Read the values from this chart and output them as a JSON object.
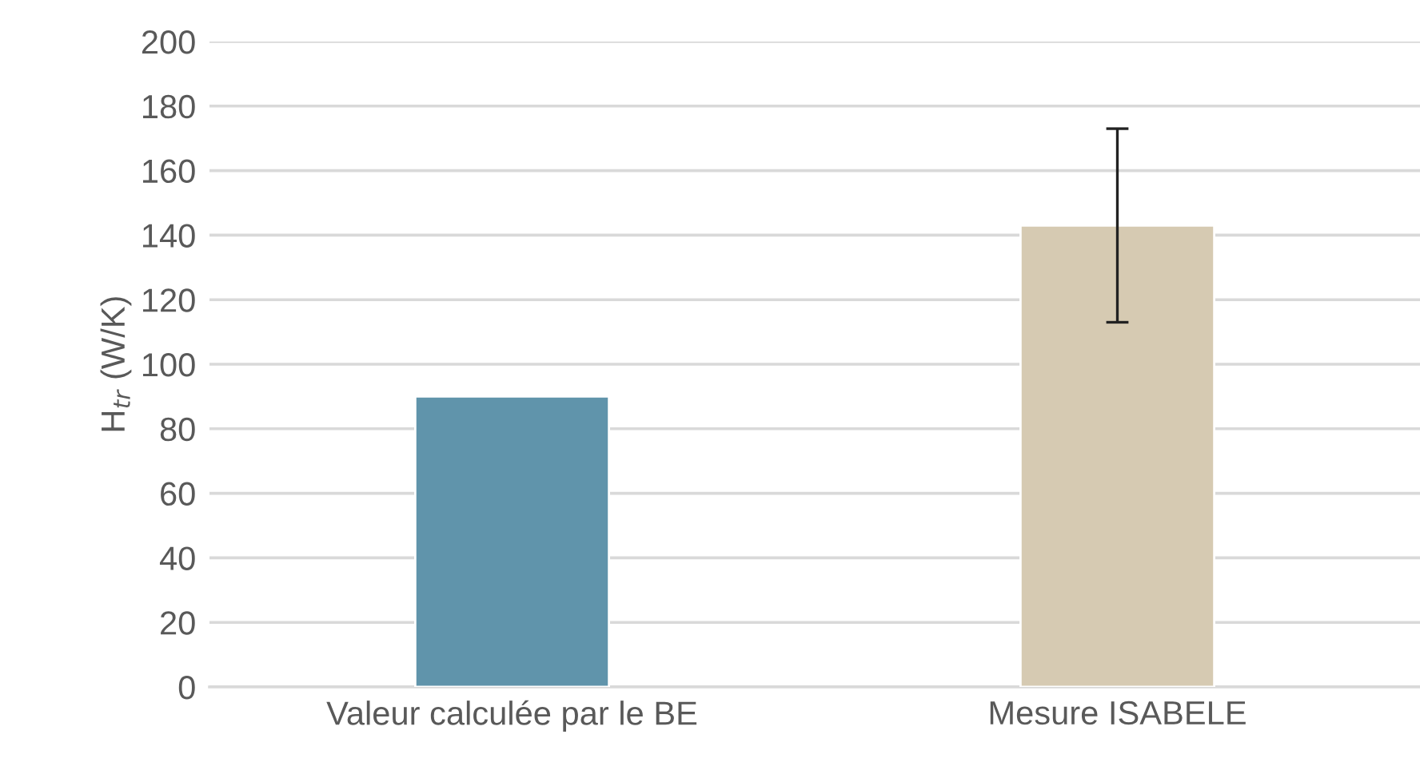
{
  "chart_data": {
    "type": "bar",
    "ylabel": "H$_{tr}$ (W/K)",
    "categories": [
      "Valeur calculée par le BE",
      "Mesure ISABELE"
    ],
    "values": [
      90,
      143
    ],
    "colors": [
      "#6094ab",
      "#d6cab2"
    ],
    "errors": [
      null,
      [
        113,
        173
      ]
    ],
    "ylim": [
      0,
      200
    ],
    "yticks": [
      0,
      20,
      40,
      60,
      80,
      100,
      120,
      140,
      160,
      180,
      200
    ],
    "grid": "y"
  }
}
